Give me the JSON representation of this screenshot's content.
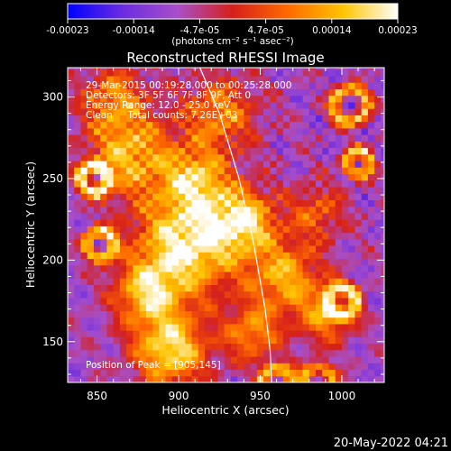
{
  "chart_data": {
    "type": "heatmap",
    "title": "Reconstructed RHESSI Image",
    "xlabel": "Heliocentric X (arcsec)",
    "ylabel": "Heliocentric Y (arcsec)",
    "xlim": [
      832,
      1026
    ],
    "ylim": [
      125,
      318
    ],
    "x_ticks": [
      850,
      900,
      950,
      1000
    ],
    "y_ticks": [
      150,
      200,
      250,
      300
    ],
    "colorbar": {
      "range": [
        -0.00023,
        0.00023
      ],
      "ticks": [
        "-0.00023",
        "-0.00014",
        "-4.7e-05",
        "4.7e-05",
        "0.00014",
        "0.00023"
      ],
      "unit_label": "(photons cm⁻² s⁻¹ asec⁻²)",
      "colors": [
        "#0000ff",
        "#6c2ce0",
        "#a84fc9",
        "#d6201a",
        "#ff6a00",
        "#ffc400",
        "#ffffff"
      ]
    },
    "annotations": [
      "29-Mar-2015 00:19:28.000 to 00:25:28.000",
      "Detectors: 3F 5F 6F 7F 8F 9F, Att 0",
      "Energy Range: 12.0 - 25.0 keV",
      "Clean     Total counts: 7.26E+03"
    ],
    "peak_label": "Position of Peak = [905,145]",
    "peak": [
      905,
      145
    ],
    "limb_curve": [
      [
        913,
        318
      ],
      [
        925,
        290
      ],
      [
        937,
        250
      ],
      [
        946,
        210
      ],
      [
        953,
        170
      ],
      [
        956,
        145
      ],
      [
        957,
        125
      ]
    ]
  },
  "footer_timestamp": "20-May-2022 04:21"
}
